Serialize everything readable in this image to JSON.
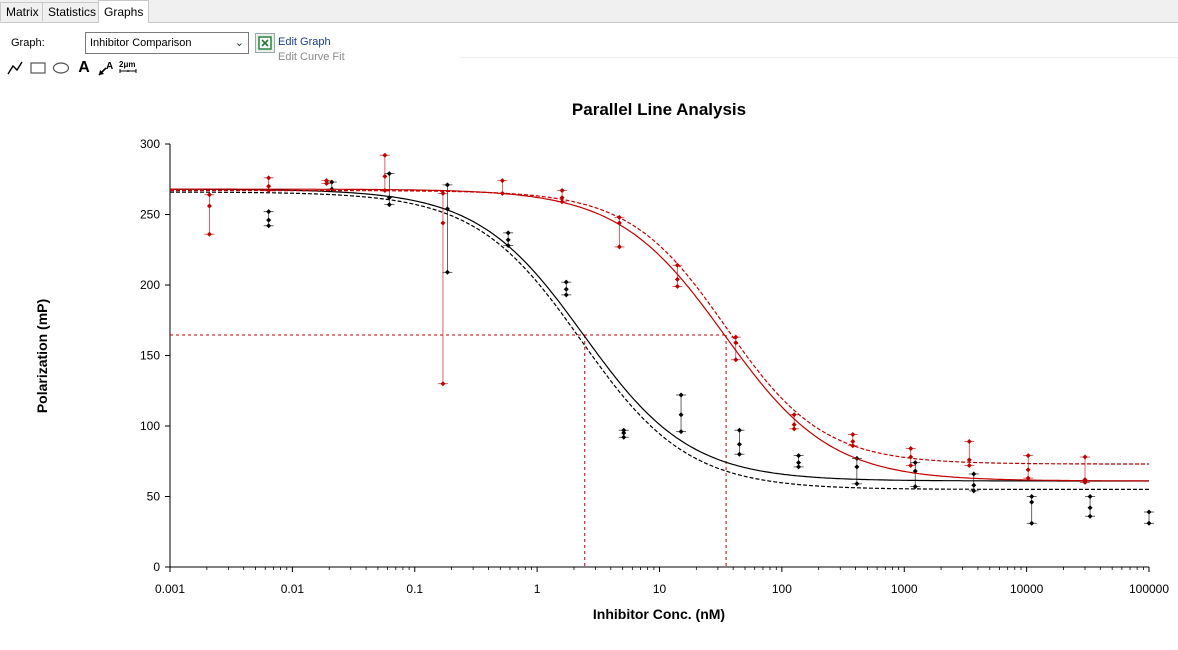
{
  "tabs": [
    {
      "label": "Matrix",
      "active": false
    },
    {
      "label": "Statistics",
      "active": false
    },
    {
      "label": "Graphs",
      "active": true
    }
  ],
  "toolbar": {
    "graph_label": "Graph:",
    "graph_value": "Inhibitor Comparison",
    "edit_graph": "Edit Graph",
    "edit_curve_fit": "Edit Curve Fit",
    "tools": [
      "line-tool-icon",
      "rectangle-tool-icon",
      "ellipse-tool-icon",
      "text-tool-icon",
      "arrow-text-tool-icon",
      "scale-bar-tool-icon"
    ]
  },
  "chart_data": {
    "type": "scatter",
    "title": "Parallel Line Analysis",
    "xlabel": "Inhibitor Conc. (nM)",
    "ylabel": "Polarization (mP)",
    "xscale": "log",
    "xlim": [
      0.001,
      100000
    ],
    "ylim": [
      0,
      300
    ],
    "xticks": [
      "0.001",
      "0.01",
      "0.1",
      "1",
      "10",
      "100",
      "1000",
      "10000",
      "100000"
    ],
    "yticks": [
      "0",
      "50",
      "100",
      "150",
      "200",
      "250",
      "300"
    ],
    "grid": false,
    "colors": {
      "black": "#000000",
      "red": "#c00000"
    },
    "series": [
      {
        "color": "#000000",
        "fit_solid": {
          "bottom": 61,
          "top": 268,
          "ic50": 2.4,
          "hill": -1.0
        },
        "fit_dashed": {
          "bottom": 55,
          "top": 266,
          "ic50": 2.3,
          "hill": -1.0
        },
        "points": [
          {
            "x": 0.0064,
            "y": [
              252,
              246,
              242
            ]
          },
          {
            "x": 0.021,
            "y": [
              273,
              268
            ]
          },
          {
            "x": 0.062,
            "y": [
              279,
              262,
              257
            ]
          },
          {
            "x": 0.185,
            "y": [
              271,
              254,
              209
            ]
          },
          {
            "x": 0.58,
            "y": [
              237,
              232,
              228
            ]
          },
          {
            "x": 1.73,
            "y": [
              202,
              197,
              193
            ]
          },
          {
            "x": 5.1,
            "y": [
              97,
              95,
              92
            ]
          },
          {
            "x": 15,
            "y": [
              122,
              108,
              96
            ]
          },
          {
            "x": 45,
            "y": [
              97,
              87,
              80
            ]
          },
          {
            "x": 137,
            "y": [
              79,
              74,
              71
            ]
          },
          {
            "x": 410,
            "y": [
              77,
              71,
              59
            ]
          },
          {
            "x": 1230,
            "y": [
              74,
              68,
              57
            ]
          },
          {
            "x": 3700,
            "y": [
              66,
              58,
              54
            ]
          },
          {
            "x": 11000,
            "y": [
              50,
              46,
              31
            ]
          },
          {
            "x": 33000,
            "y": [
              50,
              42,
              36
            ]
          },
          {
            "x": 100000,
            "y": [
              39,
              31
            ]
          }
        ]
      },
      {
        "color": "#c00000",
        "fit_solid": {
          "bottom": 61,
          "top": 268,
          "ic50": 34,
          "hill": -1.0
        },
        "fit_dashed": {
          "bottom": 73,
          "top": 267,
          "ic50": 35,
          "hill": -1.1
        },
        "points": [
          {
            "x": 0.0021,
            "y": [
              264,
              256,
              236
            ]
          },
          {
            "x": 0.0064,
            "y": [
              276,
              270,
              267
            ]
          },
          {
            "x": 0.019,
            "y": [
              274,
              272
            ]
          },
          {
            "x": 0.057,
            "y": [
              292,
              277,
              267
            ]
          },
          {
            "x": 0.17,
            "y": [
              265,
              244,
              130
            ]
          },
          {
            "x": 0.52,
            "y": [
              274,
              265
            ]
          },
          {
            "x": 1.6,
            "y": [
              267,
              262,
              259
            ]
          },
          {
            "x": 4.7,
            "y": [
              248,
              244,
              227
            ]
          },
          {
            "x": 14,
            "y": [
              214,
              204,
              199
            ]
          },
          {
            "x": 42,
            "y": [
              163,
              159,
              147
            ]
          },
          {
            "x": 126,
            "y": [
              108,
              101,
              98
            ]
          },
          {
            "x": 380,
            "y": [
              94,
              89,
              86
            ]
          },
          {
            "x": 1130,
            "y": [
              84,
              78,
              72
            ]
          },
          {
            "x": 3400,
            "y": [
              89,
              76,
              72
            ]
          },
          {
            "x": 10300,
            "y": [
              79,
              69,
              63
            ]
          },
          {
            "x": 30000,
            "y": [
              78,
              62,
              60
            ]
          }
        ]
      }
    ],
    "annotations": {
      "ic50_y": 164.5,
      "ic50_black_x": 2.45,
      "ic50_red_x": 35,
      "line_color": "#c00000",
      "style": "dashed"
    }
  }
}
